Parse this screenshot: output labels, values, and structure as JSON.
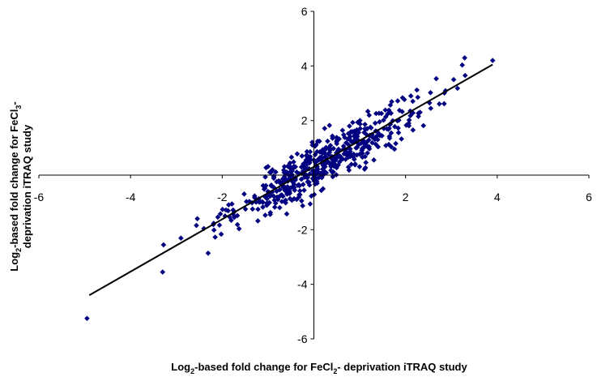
{
  "chart_data": {
    "type": "scatter",
    "title": "",
    "xlabel": {
      "pre": "Log",
      "sub": "2",
      "mid": "-based fold change for FeCl",
      "sub2": "2",
      "post": "- deprivation iTRAQ study"
    },
    "ylabel": {
      "line1_pre": "Log",
      "line1_sub": "2",
      "line1_mid": "-based fold change for FeCl",
      "line1_sub2": "3",
      "line1_post": "-",
      "line2": "deprivation iTRAQ study"
    },
    "xlim": [
      -6,
      6
    ],
    "ylim": [
      -6,
      6
    ],
    "x_ticks": [
      "-6",
      "-4",
      "-2",
      "0",
      "2",
      "4",
      "6"
    ],
    "y_ticks": [
      "-6",
      "-4",
      "-2",
      "0",
      "2",
      "4",
      "6"
    ],
    "axes_cross_at_origin": true,
    "grid": false,
    "legend": "none",
    "marker_color": "#000080",
    "marker_shape": "diamond",
    "trendline": {
      "x": [
        -4.9,
        3.9
      ],
      "y": [
        -4.4,
        4.05
      ],
      "color": "#000000"
    },
    "notable_points": [
      [
        -4.95,
        -5.25
      ],
      [
        3.9,
        4.2
      ],
      [
        3.3,
        3.65
      ],
      [
        -3.3,
        -3.55
      ],
      [
        3.05,
        3.5
      ]
    ],
    "cluster": {
      "n": 520,
      "slope": 0.96,
      "intercept": 0.25,
      "x_sd": 1.05,
      "y_sd": 0.42
    }
  }
}
